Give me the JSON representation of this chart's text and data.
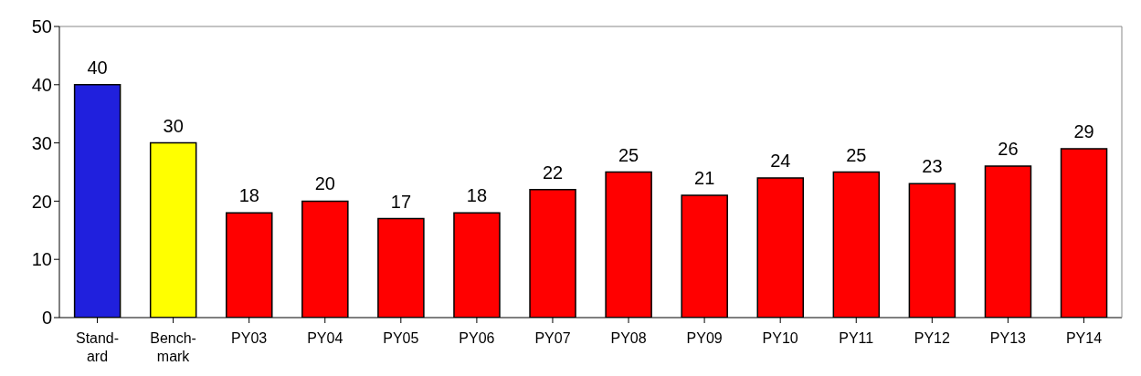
{
  "chart_data": {
    "type": "bar",
    "categories": [
      "Stand-\nard",
      "Bench-\nmark",
      "PY03",
      "PY04",
      "PY05",
      "PY06",
      "PY07",
      "PY08",
      "PY09",
      "PY10",
      "PY11",
      "PY12",
      "PY13",
      "PY14"
    ],
    "values": [
      40,
      30,
      18,
      20,
      17,
      18,
      22,
      25,
      21,
      24,
      25,
      23,
      26,
      29
    ],
    "colors": [
      "#2020dd",
      "#ffff00",
      "#ff0000",
      "#ff0000",
      "#ff0000",
      "#ff0000",
      "#ff0000",
      "#ff0000",
      "#ff0000",
      "#ff0000",
      "#ff0000",
      "#ff0000",
      "#ff0000",
      "#ff0000"
    ],
    "ylim": [
      0,
      50
    ],
    "yticks": [
      0,
      10,
      20,
      30,
      40,
      50
    ],
    "grid": false,
    "data_labels": true
  }
}
